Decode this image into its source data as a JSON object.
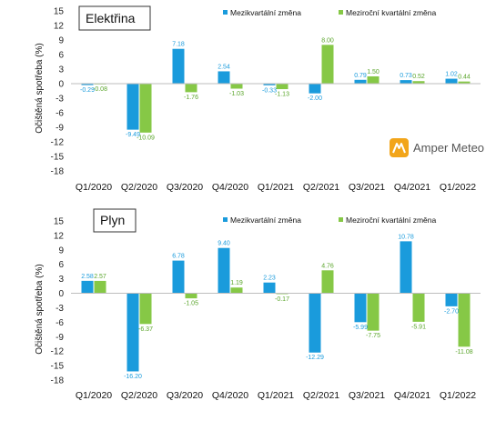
{
  "colors": {
    "mq": "#1a9bdc",
    "yoy": "#86c846",
    "mq_label": "#1a9bdc",
    "yoy_label": "#5aa52b",
    "logo": "#f2a51a"
  },
  "logo": {
    "text": "Amper Meteo",
    "icon": "amper-meteo-logo-icon"
  },
  "chart_data": [
    {
      "type": "bar",
      "title": "Elektřina",
      "ylabel": "Očištěná spotřeba (%)",
      "ylim": [
        -18,
        15
      ],
      "yticks": [
        15,
        12,
        9,
        6,
        3,
        0,
        -3,
        -6,
        -9,
        -12,
        -15,
        -18
      ],
      "legend_position": "top-right",
      "categories": [
        "Q1/2020",
        "Q2/2020",
        "Q3/2020",
        "Q4/2020",
        "Q1/2021",
        "Q2/2021",
        "Q3/2021",
        "Q4/2021",
        "Q1/2022"
      ],
      "series": [
        {
          "name": "Mezikvartální změna",
          "values": [
            -0.29,
            -9.49,
            7.18,
            2.54,
            -0.33,
            -2.0,
            0.79,
            0.73,
            1.02
          ],
          "labels": [
            "-0.29",
            "-9.49",
            "7.18",
            "2.54",
            "-0.33",
            "-2.00",
            "0.79",
            "0.73",
            "1.02"
          ]
        },
        {
          "name": "Meziroční kvartální změna",
          "values": [
            -0.08,
            -10.09,
            -1.76,
            -1.03,
            -1.13,
            8.0,
            1.5,
            0.52,
            0.44
          ],
          "labels": [
            "-0.08",
            "-10.09",
            "-1.76",
            "-1.03",
            "-1.13",
            "8.00",
            "1.50",
            "0.52",
            "0.44"
          ]
        }
      ]
    },
    {
      "type": "bar",
      "title": "Plyn",
      "ylabel": "Očištěná spotřeba (%)",
      "ylim": [
        -18,
        15
      ],
      "yticks": [
        15,
        12,
        9,
        6,
        3,
        0,
        -3,
        -6,
        -9,
        -12,
        -15,
        -18
      ],
      "legend_position": "top-right",
      "categories": [
        "Q1/2020",
        "Q2/2020",
        "Q3/2020",
        "Q4/2020",
        "Q1/2021",
        "Q2/2021",
        "Q3/2021",
        "Q4/2021",
        "Q1/2022"
      ],
      "series": [
        {
          "name": "Mezikvartální změna",
          "values": [
            2.58,
            -16.2,
            6.78,
            9.4,
            2.23,
            -12.29,
            -5.99,
            10.78,
            -2.7
          ],
          "labels": [
            "2.58",
            "-16.20",
            "6.78",
            "9.40",
            "2.23",
            "-12.29",
            "-5.99",
            "10.78",
            "-2.70"
          ]
        },
        {
          "name": "Meziroční kvartální změna",
          "values": [
            2.57,
            -6.37,
            -1.05,
            1.19,
            -0.17,
            4.76,
            -7.75,
            -5.91,
            -11.08
          ],
          "labels": [
            "2.57",
            "-6.37",
            "-1.05",
            "1.19",
            "-0.17",
            "4.76",
            "-7.75",
            "-5.91",
            "-11.08"
          ]
        }
      ]
    }
  ]
}
